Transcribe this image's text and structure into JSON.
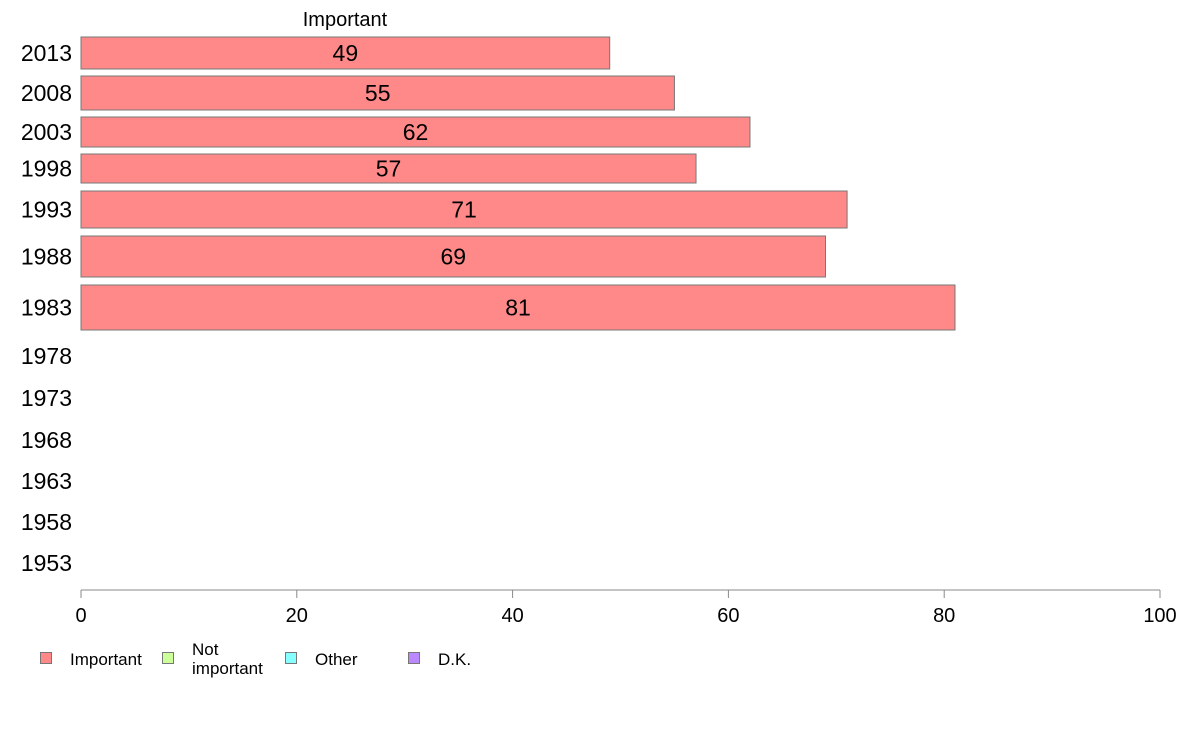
{
  "chart_data": {
    "type": "bar",
    "orientation": "horizontal",
    "series_header": "Important",
    "categories": [
      "2013",
      "2008",
      "2003",
      "1998",
      "1993",
      "1988",
      "1983",
      "1978",
      "1973",
      "1968",
      "1963",
      "1958",
      "1953"
    ],
    "series": [
      {
        "name": "Important",
        "color": "#ff8888",
        "values": [
          49,
          55,
          62,
          57,
          71,
          69,
          81,
          null,
          null,
          null,
          null,
          null,
          null
        ]
      }
    ],
    "data_labels": [
      "49",
      "55",
      "62",
      "57",
      "71",
      "69",
      "81"
    ],
    "xlim": [
      0,
      100
    ],
    "x_ticks": [
      0,
      20,
      40,
      60,
      80,
      100
    ],
    "grid": false,
    "legend_position": "bottom-left"
  },
  "legend": [
    {
      "label": "Important",
      "color": "#ff8888"
    },
    {
      "label": "Not\nimportant",
      "color": "#ccff99"
    },
    {
      "label": "Other",
      "color": "#88ffff"
    },
    {
      "label": "D.K.",
      "color": "#bb88ff"
    }
  ]
}
